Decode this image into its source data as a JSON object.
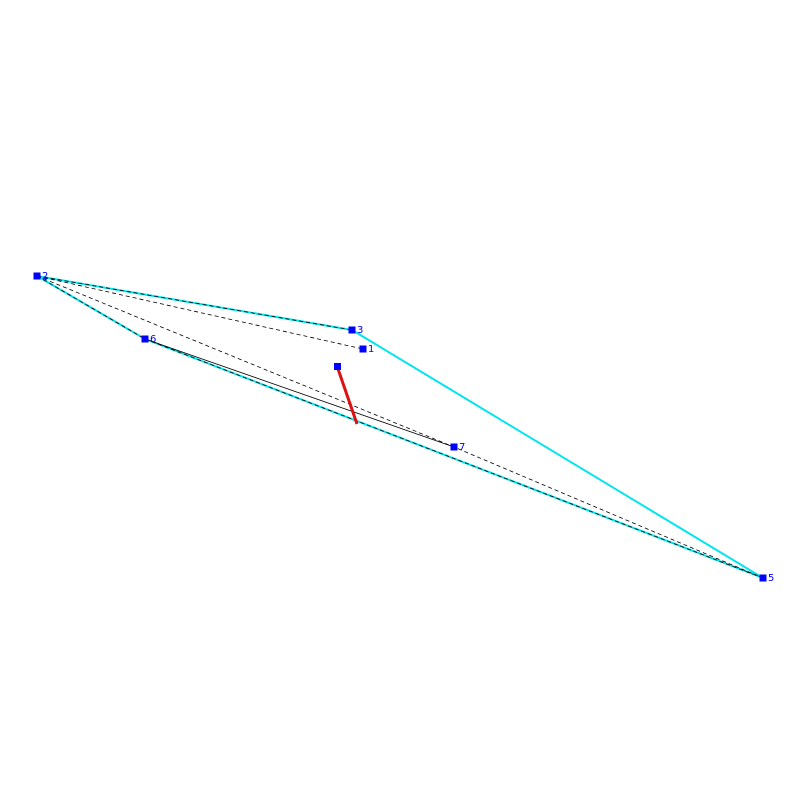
{
  "nodes": [
    {
      "label": "1"
    },
    {
      "label": "2"
    },
    {
      "label": "3"
    },
    {
      "label": "5"
    },
    {
      "label": "6"
    },
    {
      "label": "7"
    }
  ]
}
